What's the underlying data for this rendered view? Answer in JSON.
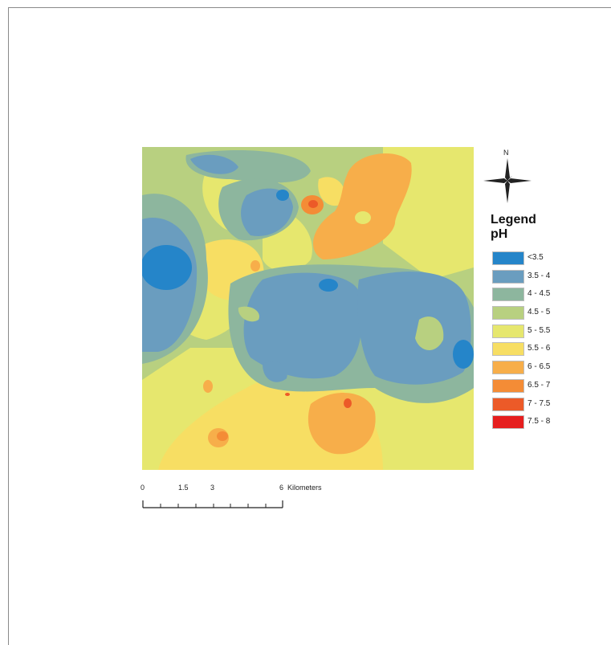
{
  "map": {
    "legend_title": "Legend",
    "legend_subtitle": "pH",
    "north_label": "N",
    "classes": [
      {
        "label": "<3.5",
        "color": "#2585c9"
      },
      {
        "label": "3.5 - 4",
        "color": "#6a9dbf"
      },
      {
        "label": "4 - 4.5",
        "color": "#8db69e"
      },
      {
        "label": "4.5 - 5",
        "color": "#b8d080"
      },
      {
        "label": "5 - 5.5",
        "color": "#e6e76e"
      },
      {
        "label": "5.5 - 6",
        "color": "#f7de63"
      },
      {
        "label": "6 - 6.5",
        "color": "#f7ae4a"
      },
      {
        "label": "6.5 - 7",
        "color": "#f48c36"
      },
      {
        "label": "7 - 7.5",
        "color": "#ec5a28"
      },
      {
        "label": "7.5 - 8",
        "color": "#e61e1e"
      }
    ],
    "scale": {
      "ticks": [
        "0",
        "1.5",
        "3",
        "6"
      ],
      "unit": "Kilometers"
    }
  }
}
